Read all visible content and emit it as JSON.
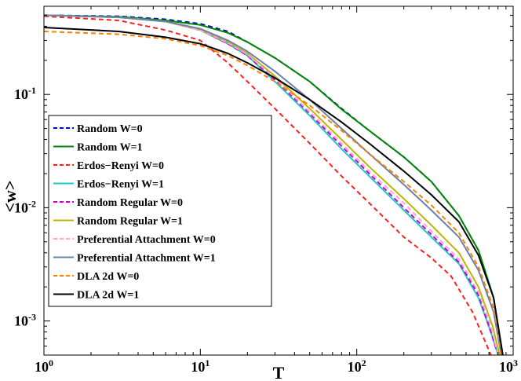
{
  "chart_data": {
    "type": "line",
    "xlabel": "T",
    "ylabel": "<w>",
    "xscale": "log",
    "yscale": "log",
    "xlim": [
      1,
      1000
    ],
    "ylim": [
      0.0005,
      0.6
    ],
    "grid": false,
    "legend_position": "bottom-left",
    "x_ticks": [
      {
        "base": "10",
        "exp": "0",
        "value": 1
      },
      {
        "base": "10",
        "exp": "1",
        "value": 10
      },
      {
        "base": "10",
        "exp": "2",
        "value": 100
      },
      {
        "base": "10",
        "exp": "3",
        "value": 1000
      }
    ],
    "y_ticks": [
      {
        "base": "10",
        "exp": "-3",
        "value": 0.001
      },
      {
        "base": "10",
        "exp": "-2",
        "value": 0.01
      },
      {
        "base": "10",
        "exp": "-1",
        "value": 0.1
      }
    ],
    "series": [
      {
        "name": "Random W=0",
        "color": "#0000cc",
        "dash": true,
        "x": [
          1,
          3,
          6,
          10,
          15,
          20,
          30,
          50,
          80,
          120,
          200,
          300,
          450,
          600,
          750,
          850
        ],
        "y": [
          0.5,
          0.49,
          0.46,
          0.42,
          0.36,
          0.29,
          0.21,
          0.13,
          0.075,
          0.048,
          0.028,
          0.017,
          0.0085,
          0.0042,
          0.0016,
          0.0005
        ]
      },
      {
        "name": "Random W=1",
        "color": "#008800",
        "dash": false,
        "x": [
          1,
          3,
          6,
          10,
          15,
          20,
          30,
          50,
          80,
          120,
          200,
          300,
          450,
          600,
          750,
          850
        ],
        "y": [
          0.5,
          0.485,
          0.45,
          0.41,
          0.35,
          0.29,
          0.21,
          0.13,
          0.074,
          0.048,
          0.028,
          0.017,
          0.0085,
          0.0042,
          0.0016,
          0.0005
        ]
      },
      {
        "name": "Erdos−Renyi W=0",
        "color": "#ff2020",
        "dash": true,
        "x": [
          1,
          3,
          6,
          10,
          15,
          20,
          30,
          50,
          80,
          120,
          200,
          300,
          400,
          550,
          650,
          720
        ],
        "y": [
          0.49,
          0.45,
          0.37,
          0.3,
          0.19,
          0.13,
          0.075,
          0.037,
          0.019,
          0.011,
          0.0055,
          0.0036,
          0.0025,
          0.0012,
          0.0007,
          0.0005
        ]
      },
      {
        "name": "Erdos−Renyi W=1",
        "color": "#20c8c8",
        "dash": false,
        "x": [
          1,
          3,
          6,
          10,
          15,
          20,
          30,
          50,
          80,
          120,
          200,
          300,
          450,
          600,
          720,
          800
        ],
        "y": [
          0.5,
          0.48,
          0.44,
          0.37,
          0.28,
          0.22,
          0.13,
          0.065,
          0.033,
          0.019,
          0.0095,
          0.0055,
          0.0032,
          0.0016,
          0.0008,
          0.0005
        ]
      },
      {
        "name": "Random Regular W=0",
        "color": "#cc00cc",
        "dash": true,
        "x": [
          1,
          3,
          6,
          10,
          15,
          20,
          30,
          50,
          80,
          120,
          200,
          300,
          450,
          600,
          720,
          800
        ],
        "y": [
          0.5,
          0.48,
          0.44,
          0.37,
          0.28,
          0.22,
          0.135,
          0.068,
          0.035,
          0.02,
          0.01,
          0.0058,
          0.0033,
          0.0017,
          0.0008,
          0.0005
        ]
      },
      {
        "name": "Random Regular W=1",
        "color": "#b8b800",
        "dash": false,
        "x": [
          1,
          3,
          6,
          10,
          15,
          20,
          30,
          50,
          80,
          120,
          200,
          300,
          450,
          600,
          740,
          820
        ],
        "y": [
          0.5,
          0.48,
          0.44,
          0.37,
          0.29,
          0.23,
          0.145,
          0.075,
          0.04,
          0.023,
          0.012,
          0.007,
          0.004,
          0.002,
          0.0009,
          0.0005
        ]
      },
      {
        "name": "Preferential Attachment W=0",
        "color": "#ffa0e8",
        "dash": true,
        "x": [
          1,
          3,
          6,
          10,
          15,
          20,
          30,
          50,
          80,
          120,
          200,
          300,
          450,
          600,
          720,
          800
        ],
        "y": [
          0.5,
          0.48,
          0.44,
          0.37,
          0.285,
          0.225,
          0.14,
          0.07,
          0.037,
          0.021,
          0.011,
          0.0062,
          0.0035,
          0.0018,
          0.0009,
          0.0005
        ]
      },
      {
        "name": "Preferential Attachment W=1",
        "color": "#6a82a8",
        "dash": false,
        "x": [
          1,
          3,
          6,
          10,
          15,
          20,
          30,
          50,
          80,
          120,
          200,
          300,
          450,
          600,
          750,
          840
        ],
        "y": [
          0.5,
          0.48,
          0.44,
          0.38,
          0.3,
          0.24,
          0.16,
          0.09,
          0.05,
          0.03,
          0.016,
          0.0095,
          0.0055,
          0.0028,
          0.0012,
          0.0005
        ]
      },
      {
        "name": "DLA 2d W=0",
        "color": "#ff8000",
        "dash": true,
        "x": [
          1,
          3,
          6,
          10,
          15,
          20,
          30,
          50,
          80,
          120,
          200,
          300,
          450,
          600,
          750,
          850
        ],
        "y": [
          0.36,
          0.34,
          0.31,
          0.27,
          0.22,
          0.18,
          0.13,
          0.08,
          0.048,
          0.03,
          0.017,
          0.0105,
          0.006,
          0.003,
          0.0013,
          0.0005
        ]
      },
      {
        "name": "DLA 2d W=1",
        "color": "#000000",
        "dash": false,
        "x": [
          1,
          3,
          6,
          10,
          15,
          20,
          30,
          50,
          80,
          120,
          200,
          300,
          450,
          600,
          750,
          860
        ],
        "y": [
          0.39,
          0.36,
          0.32,
          0.28,
          0.23,
          0.19,
          0.14,
          0.09,
          0.057,
          0.037,
          0.021,
          0.013,
          0.0075,
          0.0038,
          0.0016,
          0.0005
        ]
      }
    ]
  }
}
